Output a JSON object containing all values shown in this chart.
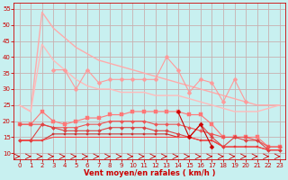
{
  "background_color": "#c8f0f0",
  "grid_color": "#c8b0b0",
  "xlabel": "Vent moyen/en rafales ( km/h )",
  "xlabel_color": "#cc0000",
  "tick_color": "#cc0000",
  "xlim": [
    -0.5,
    23.5
  ],
  "ylim": [
    8,
    57
  ],
  "yticks": [
    10,
    15,
    20,
    25,
    30,
    35,
    40,
    45,
    50,
    55
  ],
  "xticks": [
    0,
    1,
    2,
    3,
    4,
    5,
    6,
    7,
    8,
    9,
    10,
    11,
    12,
    13,
    14,
    15,
    16,
    17,
    18,
    19,
    20,
    21,
    22,
    23
  ],
  "series": [
    {
      "name": "max_envelope_top",
      "x": [
        0,
        1,
        2,
        3,
        4,
        5,
        6,
        7,
        8,
        9,
        10,
        11,
        12,
        13,
        14,
        15,
        16,
        17,
        18,
        19,
        20,
        21,
        22,
        23
      ],
      "y": [
        25,
        23,
        54,
        49,
        46,
        43,
        41,
        39,
        38,
        37,
        36,
        35,
        34,
        33,
        32,
        31,
        30,
        29,
        28,
        27,
        26,
        25,
        25,
        25
      ],
      "color": "#ffaaaa",
      "lw": 1.0,
      "marker": null,
      "ms": 0,
      "ls": "-"
    },
    {
      "name": "max_envelope_bot",
      "x": [
        0,
        1,
        2,
        3,
        4,
        5,
        6,
        7,
        8,
        9,
        10,
        11,
        12,
        13,
        14,
        15,
        16,
        17,
        18,
        19,
        20,
        21,
        22,
        23
      ],
      "y": [
        25,
        23,
        44,
        39,
        36,
        33,
        31,
        30,
        30,
        29,
        29,
        29,
        28,
        28,
        28,
        27,
        26,
        25,
        24,
        23,
        23,
        23,
        24,
        25
      ],
      "color": "#ffbbbb",
      "lw": 1.0,
      "marker": null,
      "ms": 0,
      "ls": "-"
    },
    {
      "name": "gust_zigzag",
      "x": [
        2,
        3,
        4,
        5,
        6,
        7,
        8,
        9,
        10,
        11,
        12,
        13,
        14,
        15,
        16,
        17,
        18,
        19,
        20,
        21,
        22,
        23
      ],
      "y": [
        null,
        36,
        36,
        30,
        36,
        32,
        33,
        33,
        33,
        33,
        33,
        40,
        36,
        29,
        33,
        32,
        26,
        33,
        26,
        null,
        null,
        null
      ],
      "color": "#ff9999",
      "lw": 0.8,
      "marker": "D",
      "ms": 2.5,
      "ls": "-"
    },
    {
      "name": "mean_upper_band",
      "x": [
        0,
        1,
        2,
        3,
        4,
        5,
        6,
        7,
        8,
        9,
        10,
        11,
        12,
        13,
        14,
        15,
        16,
        17,
        18,
        19,
        20,
        21,
        22,
        23
      ],
      "y": [
        19,
        19,
        23,
        20,
        19,
        20,
        21,
        21,
        22,
        22,
        23,
        23,
        23,
        23,
        23,
        22,
        22,
        19,
        15,
        15,
        15,
        15,
        12,
        12
      ],
      "color": "#ff7777",
      "lw": 0.8,
      "marker": "s",
      "ms": 2.5,
      "ls": "-"
    },
    {
      "name": "mean_mid1",
      "x": [
        0,
        1,
        2,
        3,
        4,
        5,
        6,
        7,
        8,
        9,
        10,
        11,
        12,
        13,
        14,
        15,
        16,
        17,
        18,
        19,
        20,
        21,
        22,
        23
      ],
      "y": [
        19,
        19,
        19,
        18,
        18,
        18,
        19,
        19,
        20,
        20,
        20,
        20,
        19,
        19,
        19,
        18,
        17,
        16,
        15,
        15,
        15,
        14,
        12,
        12
      ],
      "color": "#ee5555",
      "lw": 0.8,
      "marker": "D",
      "ms": 2,
      "ls": "-"
    },
    {
      "name": "mean_mid2",
      "x": [
        0,
        1,
        2,
        3,
        4,
        5,
        6,
        7,
        8,
        9,
        10,
        11,
        12,
        13,
        14,
        15,
        16,
        17,
        18,
        19,
        20,
        21,
        22,
        23
      ],
      "y": [
        14,
        14,
        19,
        18,
        17,
        17,
        17,
        17,
        18,
        18,
        18,
        18,
        17,
        17,
        16,
        15,
        19,
        15,
        12,
        15,
        14,
        14,
        11,
        11
      ],
      "color": "#dd4444",
      "lw": 0.8,
      "marker": "D",
      "ms": 2,
      "ls": "-"
    },
    {
      "name": "mean_lower1",
      "x": [
        0,
        1,
        2,
        3,
        4,
        5,
        6,
        7,
        8,
        9,
        10,
        11,
        12,
        13,
        14,
        15,
        16,
        17,
        18,
        19,
        20,
        21,
        22,
        23
      ],
      "y": [
        14,
        14,
        14,
        16,
        16,
        16,
        16,
        16,
        16,
        16,
        16,
        16,
        16,
        16,
        15,
        15,
        14,
        14,
        12,
        12,
        12,
        12,
        11,
        11
      ],
      "color": "#cc3333",
      "lw": 0.8,
      "marker": "s",
      "ms": 2,
      "ls": "-"
    },
    {
      "name": "bottom_flat",
      "x": [
        0,
        1,
        2,
        3,
        4,
        5,
        6,
        7,
        8,
        9,
        10,
        11,
        12,
        13,
        14,
        15,
        16,
        17,
        18,
        19,
        20,
        21,
        22,
        23
      ],
      "y": [
        14,
        14,
        14,
        15,
        15,
        15,
        15,
        15,
        15,
        15,
        15,
        15,
        15,
        15,
        15,
        15,
        14,
        14,
        12,
        12,
        12,
        12,
        11,
        11
      ],
      "color": "#ff4444",
      "lw": 0.8,
      "marker": null,
      "ms": 0,
      "ls": "-"
    },
    {
      "name": "zigzag_lower",
      "x": [
        2,
        3,
        4,
        5,
        6,
        7,
        8,
        9,
        10,
        11,
        12,
        13,
        14,
        15,
        16,
        17,
        18,
        19,
        20,
        21,
        22,
        23
      ],
      "y": [
        null,
        null,
        null,
        null,
        null,
        null,
        null,
        null,
        null,
        null,
        null,
        null,
        23,
        15,
        19,
        12,
        null,
        null,
        null,
        null,
        null,
        null
      ],
      "color": "#cc0000",
      "lw": 0.8,
      "marker": "D",
      "ms": 2.5,
      "ls": "-"
    }
  ]
}
